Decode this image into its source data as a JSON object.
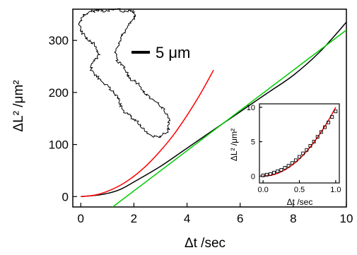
{
  "chart_data": {
    "type": "line",
    "main": {
      "xlabel": "Δt /sec",
      "ylabel": "ΔL² /μm²",
      "xlim": [
        -0.3,
        10
      ],
      "ylim": [
        -20,
        360
      ],
      "xticks": [
        0,
        2,
        4,
        6,
        8,
        10
      ],
      "yticks": [
        0,
        100,
        200,
        300
      ],
      "xtick_labels": [
        "0",
        "2",
        "4",
        "6",
        "8",
        "10"
      ],
      "ytick_labels": [
        "0",
        "100",
        "200",
        "300"
      ],
      "series": [
        {
          "color": "#000000",
          "x": [
            0,
            0.5,
            1,
            1.5,
            2,
            3,
            4,
            5,
            6,
            7,
            8,
            9,
            10
          ],
          "y": [
            0,
            2,
            6,
            14,
            28,
            58,
            93,
            128,
            163,
            198,
            233,
            278,
            335
          ]
        },
        {
          "color": "#ff0000",
          "x": [
            0,
            0.5,
            1,
            1.5,
            2,
            2.5,
            3,
            3.5,
            4,
            4.5,
            5
          ],
          "y": [
            0,
            2.5,
            10,
            22,
            39,
            61,
            88,
            119,
            156,
            197,
            243
          ]
        },
        {
          "color": "#00cc00",
          "x": [
            1.2,
            10
          ],
          "y": [
            -20,
            320
          ]
        }
      ],
      "annotation": {
        "scale_bar_label": "5 μm"
      }
    },
    "inset": {
      "xlabel": "Δt /sec",
      "ylabel": "ΔL² /μm²",
      "xlim": [
        -0.05,
        1.05
      ],
      "ylim": [
        -1,
        10.5
      ],
      "xticks": [
        0.0,
        0.5,
        1.0
      ],
      "yticks": [
        0,
        5,
        10
      ],
      "xtick_labels": [
        "0.0",
        "0.5",
        "1.0"
      ],
      "ytick_labels": [
        "0",
        "5",
        "10"
      ],
      "series": [
        {
          "color": "#ff0000",
          "x": [
            0,
            0.1,
            0.2,
            0.3,
            0.4,
            0.5,
            0.6,
            0.7,
            0.8,
            0.9,
            1.0
          ],
          "y": [
            0,
            0.1,
            0.4,
            0.9,
            1.6,
            2.5,
            3.6,
            4.9,
            6.4,
            8.1,
            10.0
          ]
        },
        {
          "color": "#000000",
          "marker": "square",
          "x": [
            0,
            0.05,
            0.1,
            0.15,
            0.2,
            0.25,
            0.3,
            0.35,
            0.4,
            0.45,
            0.5,
            0.55,
            0.6,
            0.65,
            0.7,
            0.75,
            0.8,
            0.85,
            0.9,
            0.95,
            1.0
          ],
          "y": [
            0.1,
            0.2,
            0.3,
            0.5,
            0.7,
            0.9,
            1.2,
            1.5,
            1.9,
            2.3,
            2.8,
            3.3,
            3.8,
            4.4,
            5.0,
            5.7,
            6.4,
            7.1,
            7.8,
            8.6,
            9.4
          ]
        }
      ]
    }
  }
}
